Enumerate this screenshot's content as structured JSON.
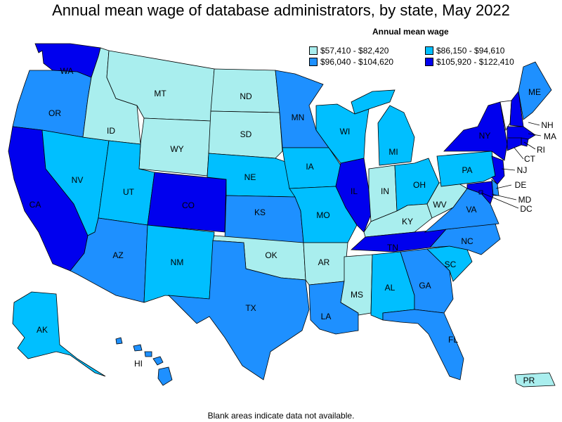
{
  "title": "Annual mean wage of database administrators, by state, May 2022",
  "legend": {
    "title": "Annual mean wage",
    "bins": [
      {
        "label": "$57,410 - $82,420",
        "color": "#a9eeee"
      },
      {
        "label": "$86,150 - $94,610",
        "color": "#00bfff"
      },
      {
        "label": "$96,040 - $104,620",
        "color": "#1e90ff"
      },
      {
        "label": "$105,920 - $122,410",
        "color": "#0000ee"
      }
    ]
  },
  "footnote": "Blank areas indicate data not available.",
  "chart_data": {
    "type": "choropleth",
    "title": "Annual mean wage of database administrators, by state, May 2022",
    "bins": [
      "$57,410 - $82,420",
      "$86,150 - $94,610",
      "$96,040 - $104,620",
      "$105,920 - $122,410"
    ],
    "states": [
      {
        "code": "WA",
        "bin": 3
      },
      {
        "code": "OR",
        "bin": 2
      },
      {
        "code": "CA",
        "bin": 3
      },
      {
        "code": "NV",
        "bin": 1
      },
      {
        "code": "ID",
        "bin": 0
      },
      {
        "code": "MT",
        "bin": 0
      },
      {
        "code": "WY",
        "bin": 0
      },
      {
        "code": "UT",
        "bin": 1
      },
      {
        "code": "AZ",
        "bin": 2
      },
      {
        "code": "CO",
        "bin": 3
      },
      {
        "code": "NM",
        "bin": 1
      },
      {
        "code": "ND",
        "bin": 0
      },
      {
        "code": "SD",
        "bin": 0
      },
      {
        "code": "NE",
        "bin": 1
      },
      {
        "code": "KS",
        "bin": 2
      },
      {
        "code": "OK",
        "bin": 0
      },
      {
        "code": "TX",
        "bin": 2
      },
      {
        "code": "MN",
        "bin": 2
      },
      {
        "code": "IA",
        "bin": 1
      },
      {
        "code": "MO",
        "bin": 1
      },
      {
        "code": "AR",
        "bin": 0
      },
      {
        "code": "LA",
        "bin": 2
      },
      {
        "code": "WI",
        "bin": 1
      },
      {
        "code": "IL",
        "bin": 3
      },
      {
        "code": "MI",
        "bin": 1
      },
      {
        "code": "IN",
        "bin": 0
      },
      {
        "code": "OH",
        "bin": 1
      },
      {
        "code": "KY",
        "bin": 0
      },
      {
        "code": "TN",
        "bin": 3
      },
      {
        "code": "MS",
        "bin": 0
      },
      {
        "code": "AL",
        "bin": 1
      },
      {
        "code": "GA",
        "bin": 2
      },
      {
        "code": "FL",
        "bin": 2
      },
      {
        "code": "SC",
        "bin": 1
      },
      {
        "code": "NC",
        "bin": 2
      },
      {
        "code": "VA",
        "bin": 2
      },
      {
        "code": "WV",
        "bin": 0
      },
      {
        "code": "PA",
        "bin": 1
      },
      {
        "code": "NY",
        "bin": 3
      },
      {
        "code": "VT",
        "bin": null
      },
      {
        "code": "NH",
        "bin": 3
      },
      {
        "code": "ME",
        "bin": 2
      },
      {
        "code": "MA",
        "bin": 3
      },
      {
        "code": "RI",
        "bin": 3
      },
      {
        "code": "CT",
        "bin": 3
      },
      {
        "code": "NJ",
        "bin": 3
      },
      {
        "code": "DE",
        "bin": 2
      },
      {
        "code": "MD",
        "bin": 3
      },
      {
        "code": "DC",
        "bin": 3
      },
      {
        "code": "AK",
        "bin": 1
      },
      {
        "code": "HI",
        "bin": 2
      },
      {
        "code": "PR",
        "bin": 0
      }
    ]
  }
}
